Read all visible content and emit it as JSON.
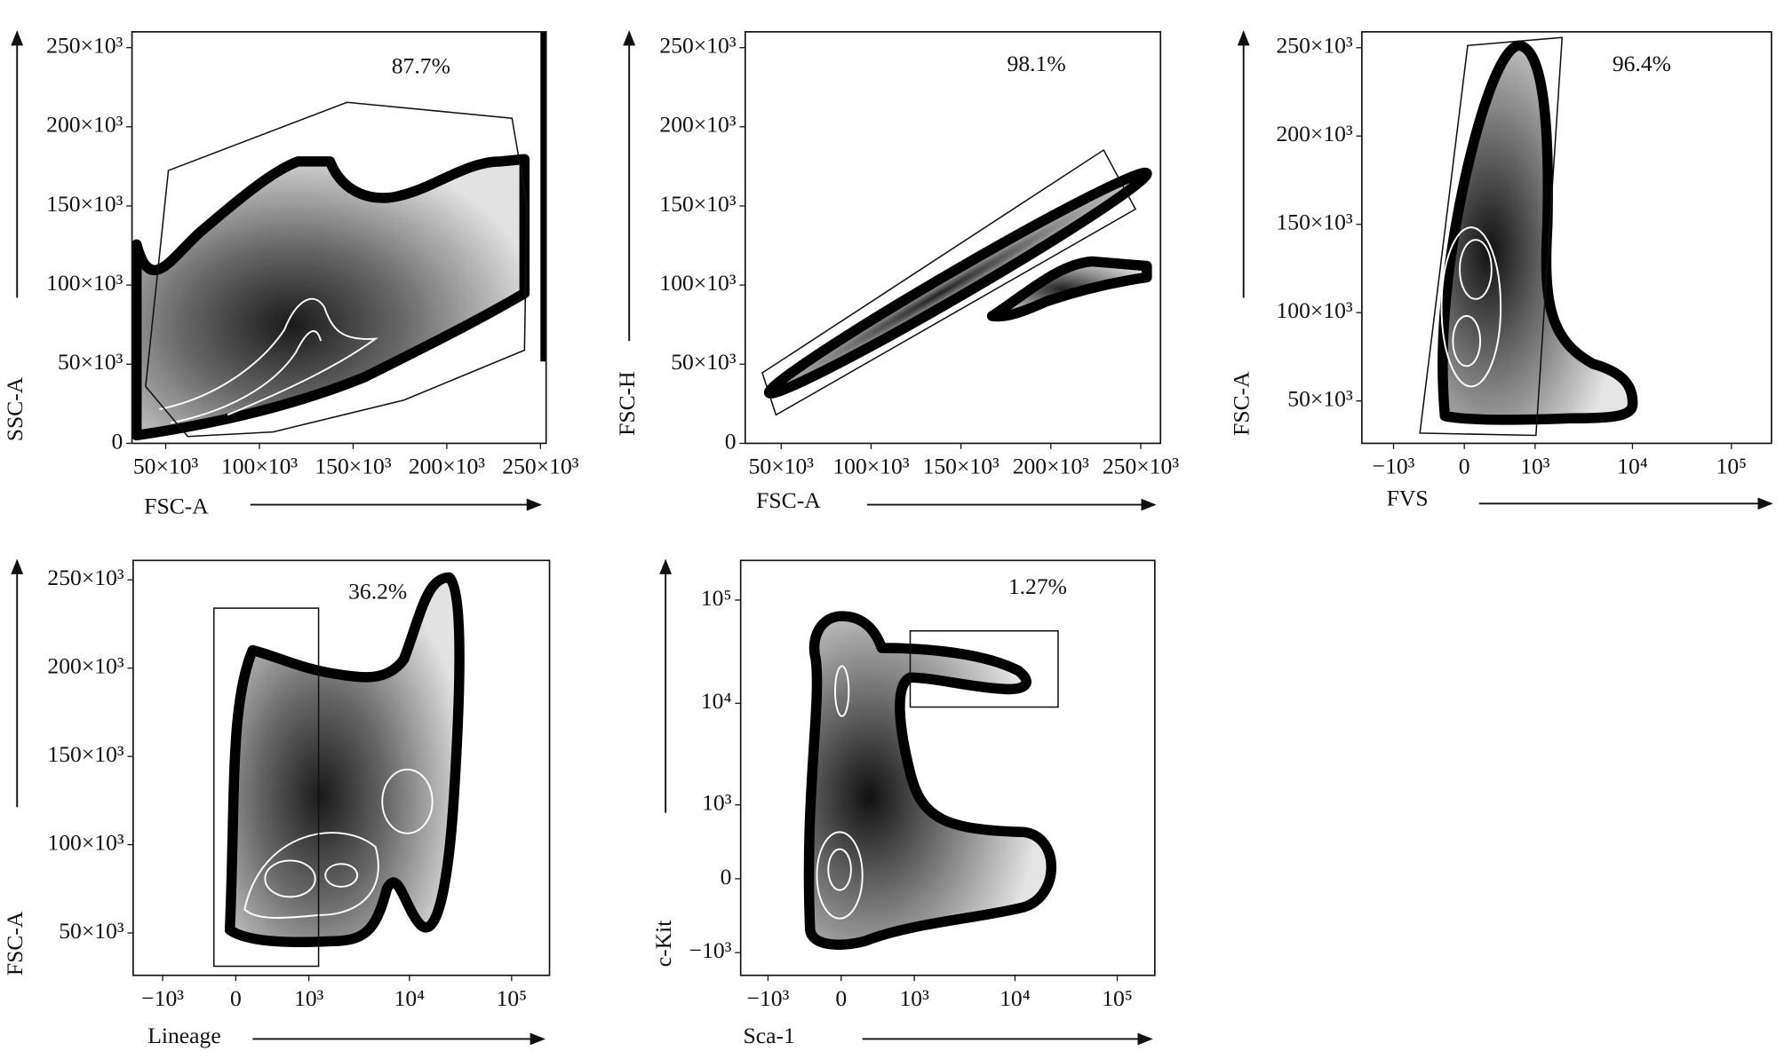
{
  "chart_data": [
    {
      "type": "density",
      "x_label": "FSC-A",
      "y_label": "SSC-A",
      "annotation": "87.7%",
      "x_scale": "linear",
      "y_scale": "linear",
      "xlim": [
        32000,
        253000
      ],
      "ylim": [
        0,
        260000
      ],
      "xticks": [
        {
          "value": 50000,
          "label": "50×10³"
        },
        {
          "value": 100000,
          "label": "100×10³"
        },
        {
          "value": 150000,
          "label": "150×10³"
        },
        {
          "value": 200000,
          "label": "200×10³"
        },
        {
          "value": 250000,
          "label": "250×10³"
        }
      ],
      "yticks": [
        0,
        {
          "value": 50000,
          "label": "50×10³"
        },
        {
          "value": 100000,
          "label": "100×10³"
        },
        {
          "value": 150000,
          "label": "150×10³"
        },
        {
          "value": 200000,
          "label": "200×10³"
        },
        {
          "value": 250000,
          "label": "250×10³"
        }
      ]
    },
    {
      "type": "density",
      "x_label": "FSC-A",
      "y_label": "FSC-H",
      "annotation": "98.1%",
      "x_scale": "linear",
      "y_scale": "linear",
      "xlim": [
        30000,
        261000
      ],
      "ylim": [
        0,
        260000
      ],
      "xticks": [
        {
          "value": 50000,
          "label": "50×10³"
        },
        {
          "value": 100000,
          "label": "100×10³"
        },
        {
          "value": 150000,
          "label": "150×10³"
        },
        {
          "value": 200000,
          "label": "200×10³"
        },
        {
          "value": 250000,
          "label": "250×10³"
        }
      ],
      "yticks": [
        0,
        {
          "value": 50000,
          "label": "50×10³"
        },
        {
          "value": 100000,
          "label": "100×10³"
        },
        {
          "value": 150000,
          "label": "150×10³"
        },
        {
          "value": 200000,
          "label": "200×10³"
        },
        {
          "value": 250000,
          "label": "250×10³"
        }
      ]
    },
    {
      "type": "density",
      "x_label": "FVS",
      "y_label": "FSC-A",
      "annotation": "96.4%",
      "x_scale": "biexponential",
      "y_scale": "linear",
      "xlim": [
        -2150,
        254000
      ],
      "ylim": [
        26000,
        259000
      ],
      "xticks": [
        {
          "value": -1000,
          "label": "−10³"
        },
        0,
        {
          "value": 1000,
          "label": "10³"
        },
        {
          "value": 10000,
          "label": "10⁴"
        },
        {
          "value": 100000,
          "label": "10⁵"
        }
      ],
      "yticks": [
        {
          "value": 50000,
          "label": "50×10³"
        },
        {
          "value": 100000,
          "label": "100×10³"
        },
        {
          "value": 150000,
          "label": "150×10³"
        },
        {
          "value": 200000,
          "label": "200×10³"
        },
        {
          "value": 250000,
          "label": "250×10³"
        }
      ]
    },
    {
      "type": "density",
      "x_label": "Lineage",
      "y_label": "FSC-A",
      "annotation": "36.2%",
      "x_scale": "biexponential",
      "y_scale": "linear",
      "xlim": [
        -2000,
        235000
      ],
      "ylim": [
        26000,
        261000
      ],
      "xticks": [
        {
          "value": -1000,
          "label": "−10³"
        },
        0,
        {
          "value": 1000,
          "label": "10³"
        },
        {
          "value": 10000,
          "label": "10⁴"
        },
        {
          "value": 100000,
          "label": "10⁵"
        }
      ],
      "yticks": [
        {
          "value": 50000,
          "label": "50×10³"
        },
        {
          "value": 100000,
          "label": "100×10³"
        },
        {
          "value": 150000,
          "label": "150×10³"
        },
        {
          "value": 200000,
          "label": "200×10³"
        },
        {
          "value": 250000,
          "label": "250×10³"
        }
      ]
    },
    {
      "type": "density",
      "x_label": "Sca-1",
      "y_label": "c-Kit",
      "annotation": "1.27%",
      "x_scale": "biexponential",
      "y_scale": "biexponential",
      "xlim": [
        -1900,
        233000
      ],
      "ylim": [
        -1700,
        242000
      ],
      "xticks": [
        {
          "value": -1000,
          "label": "−10³"
        },
        0,
        {
          "value": 1000,
          "label": "10³"
        },
        {
          "value": 10000,
          "label": "10⁴"
        },
        {
          "value": 100000,
          "label": "10⁵"
        }
      ],
      "yticks": [
        {
          "value": -1000,
          "label": "−10³"
        },
        0,
        {
          "value": 1000,
          "label": "10³"
        },
        {
          "value": 10000,
          "label": "10⁴"
        },
        {
          "value": 100000,
          "label": "10⁵"
        }
      ]
    }
  ]
}
